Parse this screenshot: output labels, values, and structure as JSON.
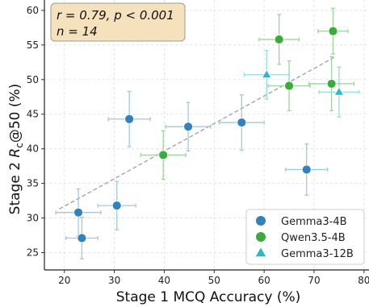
{
  "chart_data": {
    "type": "scatter",
    "xlabel": "Stage 1 MCQ Accuracy (%)",
    "ylabel_main": "Stage 2 ",
    "ylabel_var": "R",
    "ylabel_sub": "c",
    "ylabel_rest": "@50 (%)",
    "xlim": [
      16,
      81
    ],
    "ylim": [
      22.5,
      61.5
    ],
    "xticks": [
      "20",
      "30",
      "40",
      "50",
      "60",
      "70",
      "80"
    ],
    "xtick_values": [
      20,
      30,
      40,
      50,
      60,
      70,
      80
    ],
    "yticks": [
      "25",
      "30",
      "35",
      "40",
      "45",
      "50",
      "55",
      "60"
    ],
    "ytick_values": [
      25,
      30,
      35,
      40,
      45,
      50,
      55,
      60
    ],
    "grid": true,
    "stats_line1": "r = 0.79, p < 0.001",
    "stats_line2": "n = 14",
    "legend_position": "bottom-right",
    "trendline": {
      "x": [
        19,
        74
      ],
      "y": [
        31.3,
        53.2
      ]
    },
    "series": [
      {
        "name": "Gemma3-4B",
        "marker": "circle",
        "color": "#3182bd",
        "errcolor": "#9ecae1",
        "points": [
          {
            "x": 22.8,
            "y": 30.8,
            "xerr": 4.5,
            "yerr": 3.4
          },
          {
            "x": 23.5,
            "y": 27.1,
            "xerr": 3.2,
            "yerr": 3.0
          },
          {
            "x": 30.5,
            "y": 31.8,
            "xerr": 3.8,
            "yerr": 3.5
          },
          {
            "x": 33.0,
            "y": 44.3,
            "xerr": 4.2,
            "yerr": 4.0
          },
          {
            "x": 44.8,
            "y": 43.2,
            "xerr": 4.5,
            "yerr": 3.5
          },
          {
            "x": 55.5,
            "y": 43.8,
            "xerr": 4.5,
            "yerr": 4.0
          },
          {
            "x": 68.5,
            "y": 37.0,
            "xerr": 4.2,
            "yerr": 3.7
          }
        ]
      },
      {
        "name": "Qwen3.5-4B",
        "marker": "circle",
        "color": "#3cab3c",
        "errcolor": "#9fd39f",
        "points": [
          {
            "x": 39.8,
            "y": 39.1,
            "xerr": 4.5,
            "yerr": 3.5
          },
          {
            "x": 63.0,
            "y": 55.8,
            "xerr": 4.0,
            "yerr": 3.6
          },
          {
            "x": 65.0,
            "y": 49.1,
            "xerr": 4.2,
            "yerr": 3.6
          },
          {
            "x": 73.8,
            "y": 57.0,
            "xerr": 3.0,
            "yerr": 3.3
          },
          {
            "x": 73.5,
            "y": 49.4,
            "xerr": 4.5,
            "yerr": 3.9
          }
        ]
      },
      {
        "name": "Gemma3-12B",
        "marker": "triangle",
        "color": "#2ab7ca",
        "errcolor": "#94dbe4",
        "points": [
          {
            "x": 60.5,
            "y": 50.7,
            "xerr": 4.5,
            "yerr": 3.5
          },
          {
            "x": 75.0,
            "y": 48.2,
            "xerr": 4.0,
            "yerr": 3.6
          }
        ]
      }
    ]
  }
}
